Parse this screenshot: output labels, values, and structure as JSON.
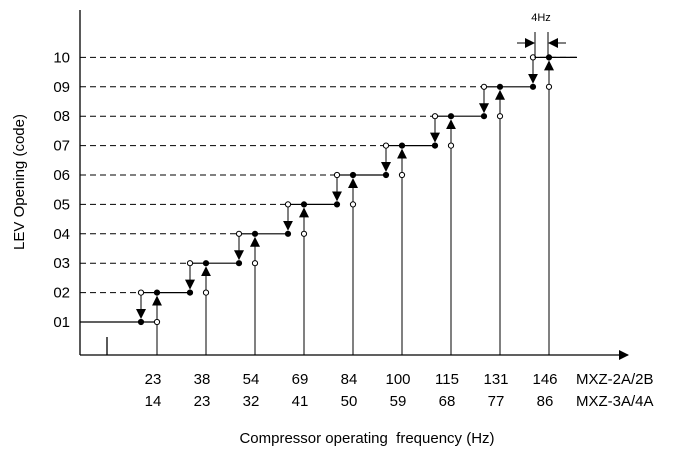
{
  "diagram": {
    "y_axis_label": "LEV Opening (code)",
    "x_axis_label": "Compressor operating  frequency (Hz)",
    "y_ticks": [
      "01",
      "02",
      "03",
      "04",
      "05",
      "06",
      "07",
      "08",
      "09",
      "10"
    ],
    "x_ticks_row1": [
      "23",
      "38",
      "54",
      "69",
      "84",
      "100",
      "115",
      "131",
      "146"
    ],
    "x_ticks_row2": [
      "14",
      "23",
      "32",
      "41",
      "50",
      "59",
      "68",
      "77",
      "86"
    ],
    "model_row1": "MXZ-2A/2B",
    "model_row2": "MXZ-3A/4A",
    "hysteresis_label": "4Hz"
  },
  "chart_data": {
    "type": "line",
    "title": "",
    "xlabel": "Compressor operating  frequency (Hz)",
    "ylabel": "LEV Opening (code)",
    "y_codes": [
      "01",
      "02",
      "03",
      "04",
      "05",
      "06",
      "07",
      "08",
      "09",
      "10"
    ],
    "series": [
      {
        "name": "MXZ-2A/2B",
        "x": [
          23,
          38,
          54,
          69,
          84,
          100,
          115,
          131,
          146
        ]
      },
      {
        "name": "MXZ-3A/4A",
        "x": [
          14,
          23,
          32,
          41,
          50,
          59,
          68,
          77,
          86
        ]
      }
    ],
    "hysteresis_hz": 4,
    "grid": "dashed horizontal at each code"
  }
}
